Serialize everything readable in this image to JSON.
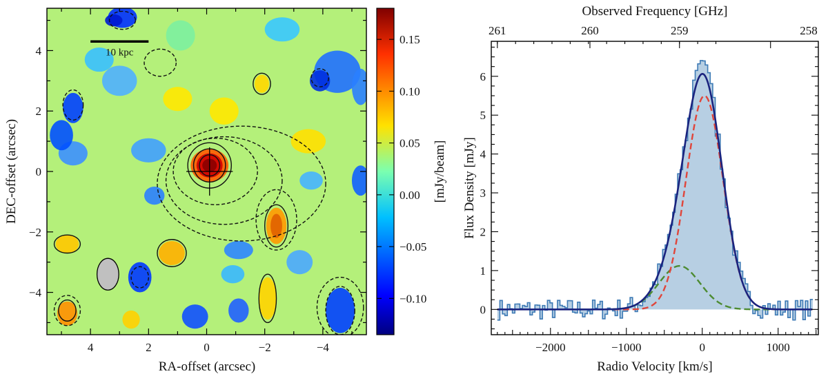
{
  "chart_data": [
    {
      "type": "heatmap",
      "xlabel": "RA-offset (arcsec)",
      "ylabel": "DEC-offset (arcsec)",
      "xlim": [
        5.5,
        -5.5
      ],
      "ylim": [
        -5.4,
        5.4
      ],
      "x_ticks": [
        4,
        2,
        0,
        -2,
        -4
      ],
      "x_tick_labels": [
        "4",
        "2",
        "0",
        "−2",
        "−4"
      ],
      "y_ticks": [
        4,
        2,
        0,
        -2,
        -4
      ],
      "y_tick_labels": [
        "4",
        "2",
        "0",
        "−2",
        "−4"
      ],
      "colorbar": {
        "label": "[mJy/beam]",
        "range": [
          -0.135,
          0.18
        ],
        "ticks": [
          0.15,
          0.1,
          0.05,
          0.0,
          -0.05,
          -0.1
        ],
        "tick_labels": [
          "0.15",
          "0.10",
          "0.05",
          "0.00",
          "−0.05",
          "−0.10"
        ],
        "colormap": "jet"
      },
      "scale_bar": {
        "label": "10 kpc",
        "x_start": 4.0,
        "x_end": 2.0,
        "y": 4.3
      },
      "beam": {
        "x": 3.4,
        "y": -3.4,
        "major": 1.05,
        "minor": 0.75,
        "color": "#c0c0c0"
      },
      "source_marker": {
        "x": -0.1,
        "y": 0.0
      },
      "grid": false
    },
    {
      "type": "line",
      "xlabel": "Radio Velocity [km/s]",
      "ylabel": "Flux Density [mJy]",
      "top_xlabel": "Observed Frequency [GHz]",
      "xlim": [
        -2780,
        1530
      ],
      "ylim": [
        -0.65,
        6.9
      ],
      "x_ticks": [
        -2000,
        -1000,
        0,
        1000
      ],
      "x_tick_labels": [
        "−2000",
        "−1000",
        "0",
        "1000"
      ],
      "y_ticks": [
        0,
        1,
        2,
        3,
        4,
        5,
        6
      ],
      "y_tick_labels": [
        "0",
        "1",
        "2",
        "3",
        "4",
        "5",
        "6"
      ],
      "top_ticks_velocity": [
        -2700,
        -1480,
        -300,
        900,
        2010
      ],
      "top_tick_labels": [
        "261",
        "260",
        "259",
        "258"
      ],
      "top_tick_label_velocity": [
        -2700,
        -1480,
        -300,
        900
      ],
      "grid": false,
      "series": [
        {
          "style": "step",
          "color": "#3d7ab5",
          "fill": "#b7cfe3"
        },
        {
          "style": "solid",
          "color": "#1a237e",
          "components": [
            {
              "amplitude": 5.5,
              "center": 30,
              "sigma": 245
            },
            {
              "amplitude": 1.12,
              "center": -300,
              "sigma": 270
            }
          ]
        },
        {
          "style": "dashed",
          "color": "#e0453a",
          "amplitude": 5.5,
          "center": 30,
          "sigma": 245
        },
        {
          "style": "dashed",
          "color": "#4d8b31",
          "amplitude": 1.12,
          "center": -300,
          "sigma": 270
        }
      ]
    }
  ]
}
